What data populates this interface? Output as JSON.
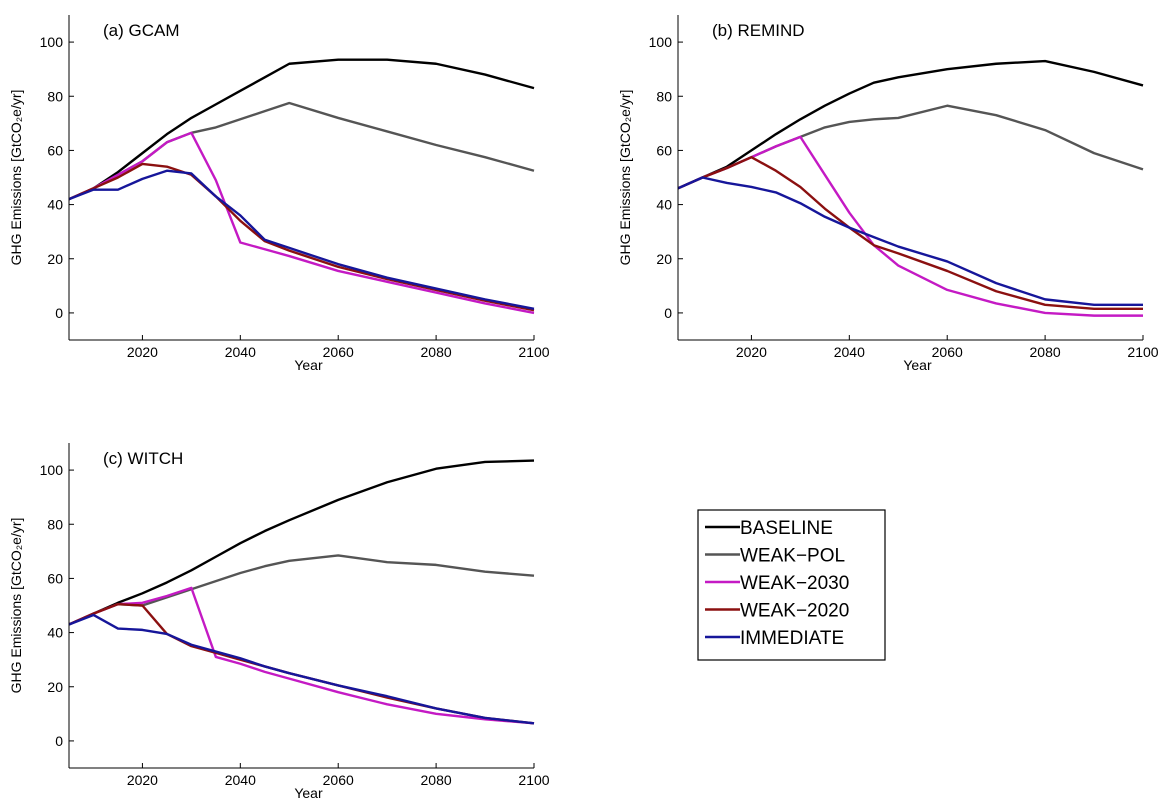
{
  "series_styles": [
    {
      "key": "baseline",
      "color": "#000000"
    },
    {
      "key": "weak_pol",
      "color": "#555555"
    },
    {
      "key": "weak_2030",
      "color": "#c41ac4"
    },
    {
      "key": "weak_2020",
      "color": "#8b1010"
    },
    {
      "key": "immediate",
      "color": "#16169a"
    }
  ],
  "legend": {
    "placement": "right-middle",
    "entries": [
      "BASELINE",
      "WEAK−POL",
      "WEAK−2030",
      "WEAK−2020",
      "IMMEDIATE"
    ]
  },
  "chart_data": [
    {
      "type": "line",
      "title": "(a) GCAM",
      "xlabel": "Year",
      "ylabel": "GHG Emissions [GtCO₂e/yr]",
      "xlim": [
        2005,
        2100
      ],
      "ylim": [
        -10,
        110
      ],
      "xticks": [
        2020,
        2040,
        2060,
        2080,
        2100
      ],
      "yticks": [
        0,
        20,
        40,
        60,
        80,
        100
      ],
      "series": [
        {
          "name": "BASELINE",
          "x": [
            2005,
            2010,
            2015,
            2020,
            2025,
            2030,
            2035,
            2040,
            2045,
            2050,
            2060,
            2070,
            2080,
            2090,
            2100
          ],
          "y": [
            42,
            46,
            52,
            59,
            66,
            72,
            77,
            82,
            87,
            92,
            93.5,
            93.5,
            92,
            88,
            83
          ]
        },
        {
          "name": "WEAK−POL",
          "x": [
            2005,
            2010,
            2015,
            2020,
            2025,
            2030,
            2035,
            2040,
            2045,
            2050,
            2060,
            2070,
            2080,
            2090,
            2100
          ],
          "y": [
            42,
            46,
            51,
            56,
            63,
            66.5,
            68.5,
            71.5,
            74.5,
            77.5,
            72,
            67,
            62,
            57.5,
            52.5
          ]
        },
        {
          "name": "WEAK−2030",
          "x": [
            2005,
            2010,
            2015,
            2020,
            2025,
            2030,
            2035,
            2040,
            2045,
            2050,
            2060,
            2070,
            2080,
            2090,
            2100
          ],
          "y": [
            42,
            46,
            51,
            56,
            63,
            66.5,
            49,
            26,
            23.5,
            21,
            15.5,
            11.5,
            7.5,
            3.5,
            0
          ]
        },
        {
          "name": "WEAK−2020",
          "x": [
            2005,
            2010,
            2015,
            2020,
            2025,
            2030,
            2035,
            2040,
            2045,
            2050,
            2060,
            2070,
            2080,
            2090,
            2100
          ],
          "y": [
            42,
            46,
            50,
            55,
            54,
            51,
            43,
            34,
            26.5,
            23,
            17,
            12.5,
            8.5,
            4.5,
            1
          ]
        },
        {
          "name": "IMMEDIATE",
          "x": [
            2005,
            2010,
            2015,
            2020,
            2025,
            2030,
            2035,
            2040,
            2045,
            2050,
            2060,
            2070,
            2080,
            2090,
            2100
          ],
          "y": [
            42,
            45.5,
            45.5,
            49.5,
            52.5,
            51.5,
            43,
            36,
            27,
            24,
            18,
            13,
            9,
            5,
            1.5
          ]
        }
      ]
    },
    {
      "type": "line",
      "title": "(b) REMIND",
      "xlabel": "Year",
      "ylabel": "GHG Emissions [GtCO₂e/yr]",
      "xlim": [
        2005,
        2100
      ],
      "ylim": [
        -10,
        110
      ],
      "xticks": [
        2020,
        2040,
        2060,
        2080,
        2100
      ],
      "yticks": [
        0,
        20,
        40,
        60,
        80,
        100
      ],
      "series": [
        {
          "name": "BASELINE",
          "x": [
            2005,
            2010,
            2015,
            2020,
            2025,
            2030,
            2035,
            2040,
            2045,
            2050,
            2060,
            2070,
            2080,
            2090,
            2100
          ],
          "y": [
            46,
            50,
            54,
            60,
            66,
            71.5,
            76.5,
            81,
            85,
            87,
            90,
            92,
            93,
            89,
            84
          ]
        },
        {
          "name": "WEAK−POL",
          "x": [
            2005,
            2010,
            2015,
            2020,
            2025,
            2030,
            2035,
            2040,
            2045,
            2050,
            2060,
            2070,
            2080,
            2090,
            2100
          ],
          "y": [
            46,
            50,
            53.5,
            57.5,
            61.5,
            65,
            68.5,
            70.5,
            71.5,
            72,
            76.5,
            73,
            67.5,
            59,
            53
          ]
        },
        {
          "name": "WEAK−2030",
          "x": [
            2005,
            2010,
            2015,
            2020,
            2025,
            2030,
            2035,
            2040,
            2045,
            2050,
            2060,
            2070,
            2080,
            2090,
            2100
          ],
          "y": [
            46,
            50,
            53.5,
            57.5,
            61.5,
            65,
            51,
            37,
            25,
            17.5,
            8.5,
            3.5,
            0,
            -1,
            -1
          ]
        },
        {
          "name": "WEAK−2020",
          "x": [
            2005,
            2010,
            2015,
            2020,
            2025,
            2030,
            2035,
            2040,
            2045,
            2050,
            2060,
            2070,
            2080,
            2090,
            2100
          ],
          "y": [
            46,
            50,
            53.5,
            57.5,
            52.5,
            46.5,
            38.5,
            31.5,
            25,
            22,
            15.5,
            8,
            3,
            1.5,
            1.5
          ]
        },
        {
          "name": "IMMEDIATE",
          "x": [
            2005,
            2010,
            2015,
            2020,
            2025,
            2030,
            2035,
            2040,
            2045,
            2050,
            2060,
            2070,
            2080,
            2090,
            2100
          ],
          "y": [
            46,
            50,
            48,
            46.5,
            44.5,
            40.5,
            35.5,
            31.5,
            28,
            24.5,
            19,
            11,
            5,
            3,
            3
          ]
        }
      ]
    },
    {
      "type": "line",
      "title": "(c) WITCH",
      "xlabel": "Year",
      "ylabel": "GHG Emissions [GtCO₂e/yr]",
      "xlim": [
        2005,
        2100
      ],
      "ylim": [
        -10,
        110
      ],
      "xticks": [
        2020,
        2040,
        2060,
        2080,
        2100
      ],
      "yticks": [
        0,
        20,
        40,
        60,
        80,
        100
      ],
      "series": [
        {
          "name": "BASELINE",
          "x": [
            2005,
            2010,
            2015,
            2020,
            2025,
            2030,
            2035,
            2040,
            2045,
            2050,
            2060,
            2070,
            2080,
            2090,
            2100
          ],
          "y": [
            43,
            47,
            51,
            54.5,
            58.5,
            63,
            68,
            73,
            77.5,
            81.5,
            89,
            95.5,
            100.5,
            103,
            103.5
          ]
        },
        {
          "name": "WEAK−POL",
          "x": [
            2005,
            2010,
            2015,
            2020,
            2025,
            2030,
            2035,
            2040,
            2045,
            2050,
            2060,
            2070,
            2080,
            2090,
            2100
          ],
          "y": [
            43,
            47,
            50.5,
            50,
            53,
            56,
            59,
            62,
            64.5,
            66.5,
            68.5,
            66,
            65,
            62.5,
            61
          ]
        },
        {
          "name": "WEAK−2030",
          "x": [
            2005,
            2010,
            2015,
            2020,
            2025,
            2030,
            2035,
            2040,
            2045,
            2050,
            2060,
            2070,
            2080,
            2090,
            2100
          ],
          "y": [
            43,
            47,
            50.5,
            51,
            53.5,
            56.5,
            31,
            28.5,
            25.5,
            23,
            18,
            13.5,
            10,
            8,
            6.5
          ]
        },
        {
          "name": "WEAK−2020",
          "x": [
            2005,
            2010,
            2015,
            2020,
            2025,
            2030,
            2035,
            2040,
            2045,
            2050,
            2060,
            2070,
            2080,
            2090,
            2100
          ],
          "y": [
            43,
            47,
            50.5,
            50,
            39.5,
            35,
            32.5,
            30,
            27.5,
            25,
            20.5,
            16,
            12,
            8.5,
            6.5
          ]
        },
        {
          "name": "IMMEDIATE",
          "x": [
            2005,
            2010,
            2015,
            2020,
            2025,
            2030,
            2035,
            2040,
            2045,
            2050,
            2060,
            2070,
            2080,
            2090,
            2100
          ],
          "y": [
            43,
            46.5,
            41.5,
            41,
            39.5,
            35.5,
            33,
            30.5,
            27.5,
            25,
            20.5,
            16.5,
            12,
            8.5,
            6.5
          ]
        }
      ]
    }
  ]
}
